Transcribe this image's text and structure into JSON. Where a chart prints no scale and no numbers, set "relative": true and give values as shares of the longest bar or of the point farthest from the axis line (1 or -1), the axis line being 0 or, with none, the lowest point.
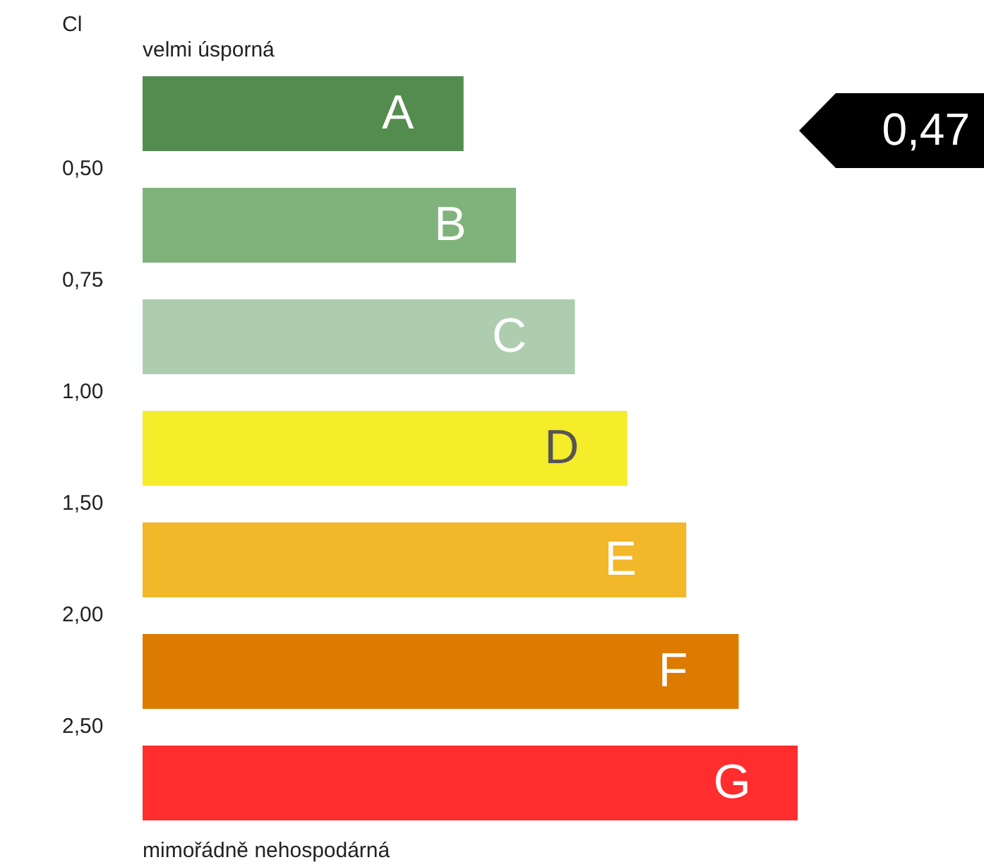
{
  "chart_data": {
    "type": "bar",
    "orientation": "horizontal",
    "relative": true,
    "ylabel": "Cl",
    "tick_labels": false,
    "legend": false,
    "categories": [
      "A",
      "B",
      "C",
      "D",
      "E",
      "F",
      "G"
    ],
    "values": [
      0.49,
      0.57,
      0.66,
      0.74,
      0.83,
      0.91,
      1
    ],
    "colors": [
      "#548c50",
      "#80b37c",
      "#aecdaf",
      "#f5ec2a",
      "#f3b72a",
      "#dd7a00",
      "#ff2d2d"
    ],
    "annotations": [
      "velmi úsporná",
      "0,50",
      "0,75",
      "1,00",
      "1,50",
      "2,00",
      "2,50",
      "mimořádně nehospodárná",
      "0,47"
    ]
  }
}
